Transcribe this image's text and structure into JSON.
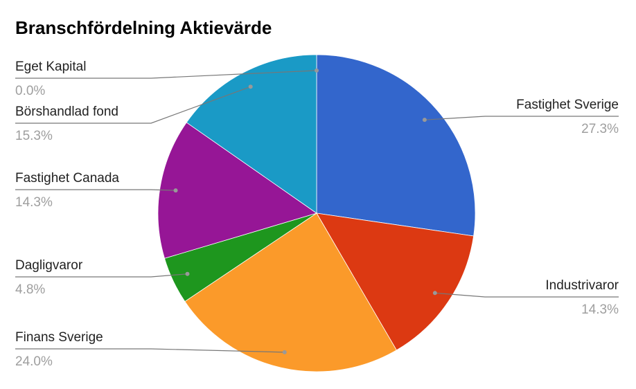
{
  "chart_data": {
    "type": "pie",
    "title": "Branschfördelning Aktievärde",
    "categories": [
      "Fastighet Sverige",
      "Industrivaror",
      "Finans Sverige",
      "Dagligvaror",
      "Fastighet Canada",
      "Börshandlad fond",
      "Eget Kapital"
    ],
    "values": [
      27.3,
      14.3,
      24.0,
      4.8,
      14.3,
      15.3,
      0.0
    ],
    "value_labels": [
      "27.3%",
      "14.3%",
      "24.0%",
      "4.8%",
      "14.3%",
      "15.3%",
      "0.0%"
    ],
    "colors": [
      "#3366cc",
      "#dc3912",
      "#fb9a2a",
      "#1e961e",
      "#961696",
      "#1a9ac6",
      "#dd4477"
    ]
  }
}
